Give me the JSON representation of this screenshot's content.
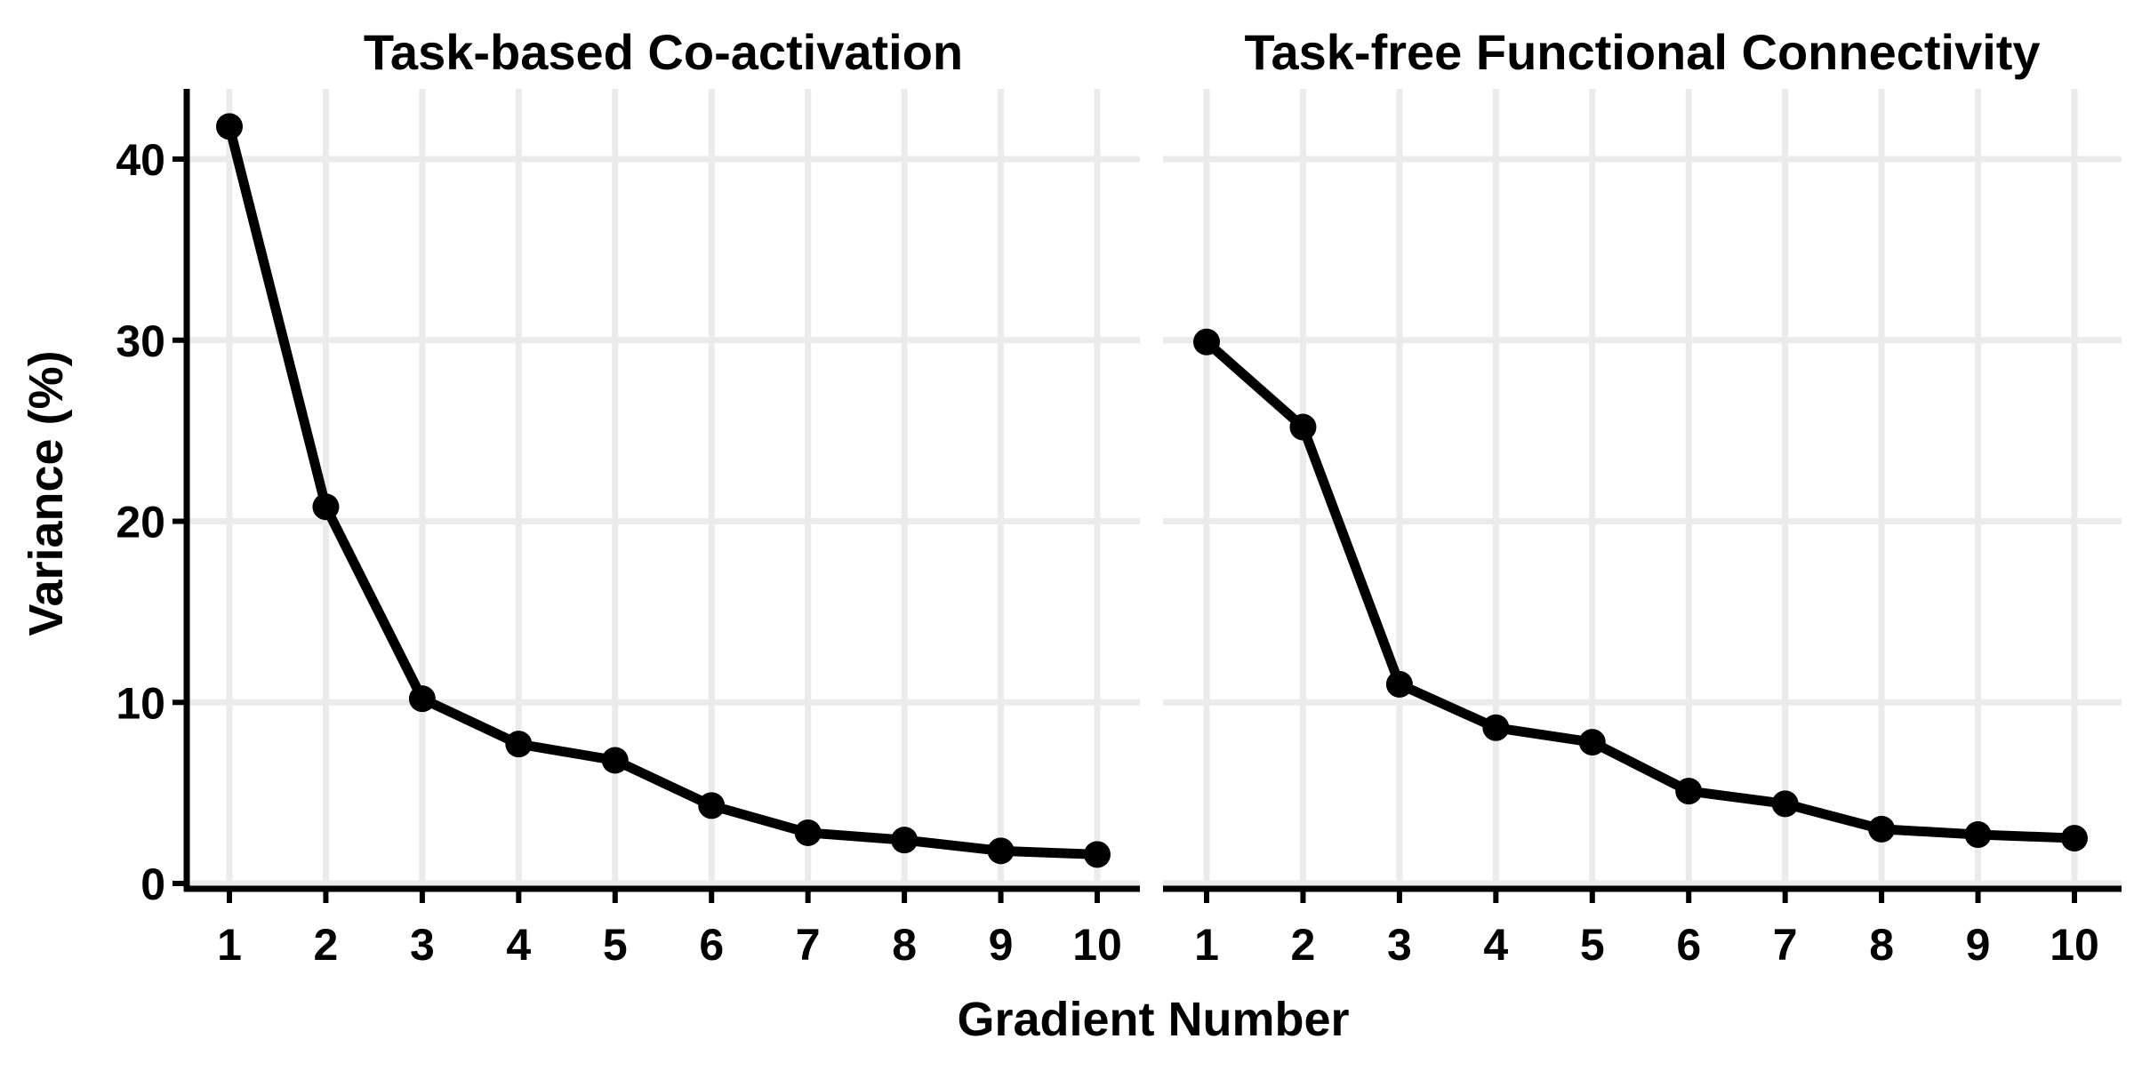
{
  "chart_data": {
    "type": "line",
    "xlabel": "Gradient Number",
    "ylabel": "Variance (%)",
    "ylim": [
      0,
      44
    ],
    "grid": true,
    "colors": {
      "line": "#000000",
      "grid": "#ebebeb",
      "axis": "#000000"
    },
    "x_ticks": [
      "1",
      "2",
      "3",
      "4",
      "5",
      "6",
      "7",
      "8",
      "9",
      "10"
    ],
    "y_ticks": [
      "0",
      "10",
      "20",
      "30",
      "40"
    ],
    "panels": [
      {
        "title": "Task-based Co-activation",
        "x": [
          1,
          2,
          3,
          4,
          5,
          6,
          7,
          8,
          9,
          10
        ],
        "values": [
          41.8,
          20.8,
          10.2,
          7.7,
          6.8,
          4.3,
          2.8,
          2.4,
          1.8,
          1.6
        ]
      },
      {
        "title": "Task-free Functional Connectivity",
        "x": [
          1,
          2,
          3,
          4,
          5,
          6,
          7,
          8,
          9,
          10
        ],
        "values": [
          29.9,
          25.2,
          11.0,
          8.6,
          7.8,
          5.1,
          4.4,
          3.0,
          2.7,
          2.5
        ]
      }
    ]
  }
}
